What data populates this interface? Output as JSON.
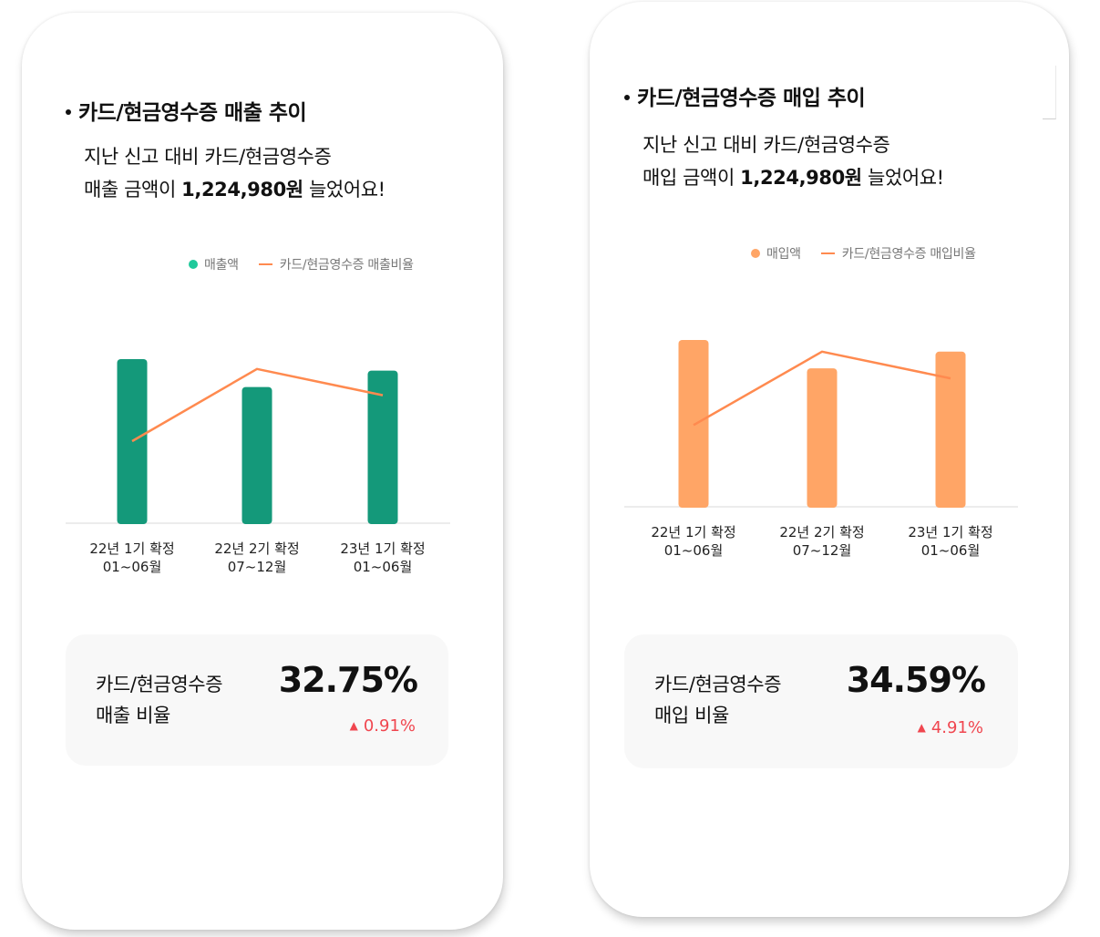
{
  "colors": {
    "sales_bar": "#14997a",
    "sales_dot": "#20c99b",
    "purchase_bar": "#ffa566",
    "line": "#ff8a4f",
    "increase": "#f0464f"
  },
  "sales_panel": {
    "title": "카드/현금영수증 매출 추이",
    "summary_line1": "지난 신고 대비 카드/현금영수증",
    "summary_line2_prefix": "매출 금액이 ",
    "summary_amount": "1,224,980원",
    "summary_line2_suffix": " 늘었어요!",
    "legend_bar": "매출액",
    "legend_line": "카드/현금영수증 매출비율",
    "ratio_label_line1": "카드/현금영수증",
    "ratio_label_line2": "매출 비율",
    "ratio_value": "32.75%",
    "ratio_change": "0.91%",
    "chart_icons": {
      "change_arrow": "triangle-up-icon"
    }
  },
  "purchase_panel": {
    "title": "카드/현금영수증 매입 추이",
    "summary_line1": "지난 신고 대비 카드/현금영수증",
    "summary_line2_prefix": "매입 금액이 ",
    "summary_amount": "1,224,980원",
    "summary_line2_suffix": " 늘었어요!",
    "legend_bar": "매입액",
    "legend_line": "카드/현금영수증 매입비율",
    "ratio_label_line1": "카드/현금영수증",
    "ratio_label_line2": "매입 비율",
    "ratio_value": "34.59%",
    "ratio_change": "4.91%",
    "chart_icons": {
      "change_arrow": "triangle-up-icon"
    }
  },
  "chart_data": [
    {
      "type": "bar",
      "title": "카드/현금영수증 매출 추이",
      "categories": [
        {
          "line1": "22년 1기 확정",
          "line2": "01~06월"
        },
        {
          "line1": "22년 2기 확정",
          "line2": "07~12월"
        },
        {
          "line1": "23년 1기 확정",
          "line2": "01~06월"
        }
      ],
      "series": [
        {
          "name": "매출액",
          "kind": "bar",
          "values": [
            100,
            83,
            93
          ]
        },
        {
          "name": "카드/현금영수증 매출비율",
          "kind": "line",
          "values": [
            50,
            94,
            78
          ]
        }
      ],
      "ylim": [
        0,
        100
      ],
      "legend_position": "top-right"
    },
    {
      "type": "bar",
      "title": "카드/현금영수증 매입 추이",
      "categories": [
        {
          "line1": "22년 1기 확정",
          "line2": "01~06월"
        },
        {
          "line1": "22년 2기 확정",
          "line2": "07~12월"
        },
        {
          "line1": "23년 1기 확정",
          "line2": "01~06월"
        }
      ],
      "series": [
        {
          "name": "매입액",
          "kind": "bar",
          "values": [
            100,
            83,
            93
          ]
        },
        {
          "name": "카드/현금영수증 매입비율",
          "kind": "line",
          "values": [
            49,
            93,
            77
          ]
        }
      ],
      "ylim": [
        0,
        100
      ],
      "legend_position": "top-right"
    }
  ]
}
